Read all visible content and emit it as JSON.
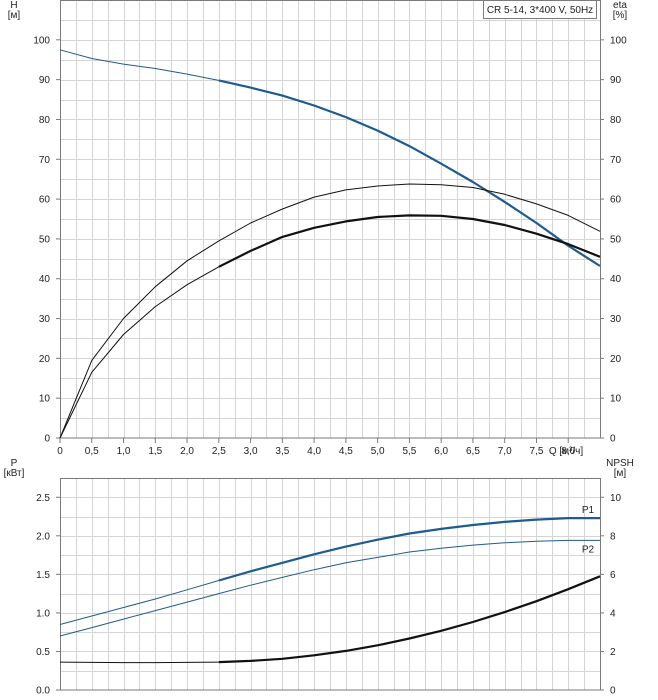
{
  "chart_data": [
    {
      "type": "line",
      "legend_box": "CR 5-14, 3*400 V, 50Hz",
      "xlabel": "Q [м³/ч]",
      "ylabel_left": [
        "H",
        "[м]"
      ],
      "ylabel_right": [
        "eta",
        "[%]"
      ],
      "xlim": [
        0,
        8.5
      ],
      "ylim_left": [
        0,
        110
      ],
      "ylim_right": [
        0,
        110
      ],
      "x_ticks": [
        0,
        0.5,
        1.0,
        1.5,
        2.0,
        2.5,
        3.0,
        3.5,
        4.0,
        4.5,
        5.0,
        5.5,
        6.0,
        6.5,
        7.0,
        7.5,
        8.0
      ],
      "x_tick_labels": [
        "0",
        "0,5",
        "1,0",
        "1,5",
        "2,0",
        "2,5",
        "3,0",
        "3,5",
        "4,0",
        "4,5",
        "5,0",
        "5,5",
        "6,0",
        "6,5",
        "7,0",
        "7,5",
        "8,0"
      ],
      "y_ticks_left": [
        0,
        10,
        20,
        30,
        40,
        50,
        60,
        70,
        80,
        90,
        100
      ],
      "y_ticks_right": [
        0,
        10,
        20,
        30,
        40,
        50,
        60,
        70,
        80,
        90,
        100
      ],
      "grid": true,
      "series": [
        {
          "axis": "left",
          "color": "#1f5b8f",
          "x": [
            0,
            0.5,
            1.0,
            1.5,
            2.0,
            2.5,
            3.0,
            3.5,
            4.0,
            4.5,
            5.0,
            5.5,
            6.0,
            6.5,
            7.0,
            7.5,
            8.0,
            8.5
          ],
          "y": [
            97.5,
            95.3,
            93.9,
            92.8,
            91.4,
            89.8,
            88.0,
            86.0,
            83.5,
            80.6,
            77.2,
            73.3,
            68.9,
            64.3,
            59.3,
            54.0,
            48.3,
            43.2
          ],
          "bold_from": 2.5
        },
        {
          "axis": "right",
          "color": "#111111",
          "x": [
            0,
            0.5,
            1.0,
            1.5,
            2.0,
            2.5,
            3.0,
            3.5,
            4.0,
            4.5,
            5.0,
            5.5,
            6.0,
            6.5,
            7.0,
            7.5,
            8.0,
            8.5
          ],
          "y": [
            0,
            19.5,
            30.0,
            38.0,
            44.5,
            49.5,
            54.0,
            57.5,
            60.5,
            62.3,
            63.3,
            63.8,
            63.6,
            62.9,
            61.2,
            58.8,
            55.9,
            51.9
          ],
          "bold_from": 99
        },
        {
          "axis": "right",
          "color": "#111111",
          "x": [
            0,
            0.5,
            1.0,
            1.5,
            2.0,
            2.5,
            3.0,
            3.5,
            4.0,
            4.5,
            5.0,
            5.5,
            6.0,
            6.5,
            7.0,
            7.5,
            8.0,
            8.5
          ],
          "y": [
            0,
            16.5,
            26.0,
            33.0,
            38.5,
            43.0,
            47.0,
            50.5,
            52.8,
            54.4,
            55.5,
            55.9,
            55.8,
            55.0,
            53.5,
            51.3,
            48.7,
            45.5
          ],
          "bold_from": 2.5
        }
      ]
    },
    {
      "type": "line",
      "ylabel_left": [
        "P",
        "[кВт]"
      ],
      "ylabel_right": [
        "NPSH",
        "[м]"
      ],
      "xlim": [
        0,
        8.5
      ],
      "ylim_left": [
        0,
        2.75
      ],
      "ylim_right": [
        0,
        11
      ],
      "y_ticks_left": [
        0,
        0.5,
        1.0,
        1.5,
        2.0,
        2.5
      ],
      "y_tick_labels_left": [
        "0.0",
        "0.5",
        "1.0",
        "1.5",
        "2.0",
        "2.5"
      ],
      "y_ticks_right": [
        0,
        2,
        4,
        6,
        8,
        10
      ],
      "grid": true,
      "series": [
        {
          "name": "P1",
          "axis": "left",
          "color": "#1f5b8f",
          "x": [
            0,
            0.5,
            1.0,
            1.5,
            2.0,
            2.5,
            3.0,
            3.5,
            4.0,
            4.5,
            5.0,
            5.5,
            6.0,
            6.5,
            7.0,
            7.5,
            8.0,
            8.5
          ],
          "y": [
            0.85,
            0.96,
            1.07,
            1.18,
            1.3,
            1.42,
            1.54,
            1.65,
            1.76,
            1.86,
            1.95,
            2.03,
            2.09,
            2.14,
            2.18,
            2.21,
            2.23,
            2.23
          ],
          "bold_from": 2.5
        },
        {
          "name": "P2",
          "axis": "left",
          "color": "#1f5b8f",
          "x": [
            0,
            0.5,
            1.0,
            1.5,
            2.0,
            2.5,
            3.0,
            3.5,
            4.0,
            4.5,
            5.0,
            5.5,
            6.0,
            6.5,
            7.0,
            7.5,
            8.0,
            8.5
          ],
          "y": [
            0.7,
            0.81,
            0.92,
            1.03,
            1.14,
            1.25,
            1.36,
            1.46,
            1.56,
            1.65,
            1.72,
            1.79,
            1.84,
            1.88,
            1.91,
            1.93,
            1.94,
            1.94
          ],
          "bold_from": 99
        },
        {
          "axis": "right",
          "color": "#111111",
          "x": [
            0,
            0.5,
            1.0,
            1.5,
            2.0,
            2.5,
            3.0,
            3.5,
            4.0,
            4.5,
            5.0,
            5.5,
            6.0,
            6.5,
            7.0,
            7.5,
            8.0,
            8.5
          ],
          "y": [
            1.45,
            1.43,
            1.42,
            1.42,
            1.43,
            1.45,
            1.51,
            1.62,
            1.8,
            2.03,
            2.32,
            2.67,
            3.07,
            3.53,
            4.04,
            4.61,
            5.23,
            5.9
          ],
          "bold_from": 2.5
        }
      ]
    }
  ]
}
